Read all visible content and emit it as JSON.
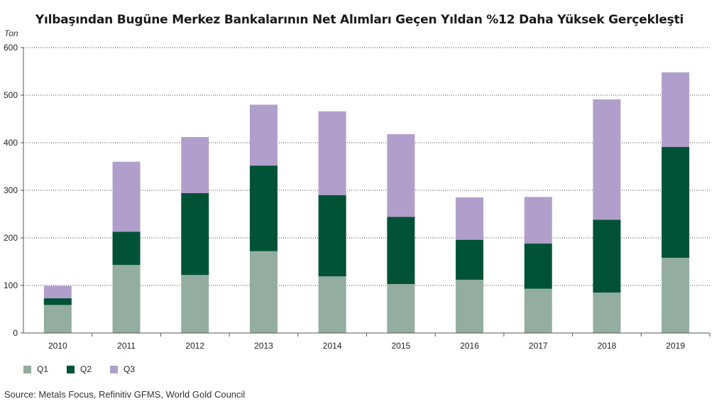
{
  "chart_data": {
    "type": "bar",
    "stacked": true,
    "title": "Yılbaşından Bugüne Merkez Bankalarının Net Alımları Geçen Yıldan %12 Daha Yüksek Gerçekleşti",
    "ylabel": "Ton",
    "xlabel": "",
    "ylim": [
      0,
      600
    ],
    "yticks": [
      0,
      100,
      200,
      300,
      400,
      500,
      600
    ],
    "grid": true,
    "legend_position": "bottom-left",
    "categories": [
      "2010",
      "2011",
      "2012",
      "2013",
      "2014",
      "2015",
      "2016",
      "2017",
      "2018",
      "2019"
    ],
    "series": [
      {
        "name": "Q1",
        "color": "#93ada0",
        "values": [
          59,
          143,
          122,
          172,
          119,
          103,
          112,
          93,
          85,
          158
        ]
      },
      {
        "name": "Q2",
        "color": "#005236",
        "values": [
          14,
          70,
          172,
          180,
          171,
          141,
          84,
          95,
          153,
          233
        ]
      },
      {
        "name": "Q3",
        "color": "#b09fcb",
        "values": [
          26,
          147,
          118,
          128,
          176,
          174,
          89,
          98,
          253,
          157
        ]
      }
    ],
    "source": "Source: Metals Focus, Refinitiv GFMS, World Gold Council"
  }
}
